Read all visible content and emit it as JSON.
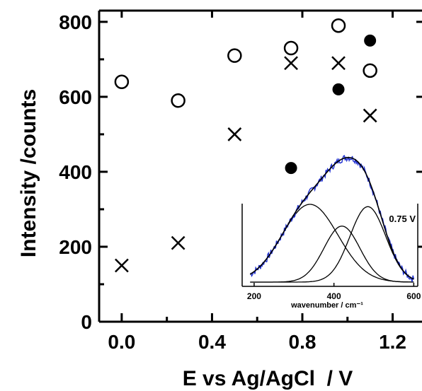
{
  "chart_data": [
    {
      "type": "scatter",
      "title": "",
      "xlabel": "E vs Ag/AgCl  / V",
      "ylabel": "Intensity /counts",
      "xlim": [
        -0.1,
        1.33
      ],
      "ylim": [
        0,
        830
      ],
      "x_ticks": [
        "0.0",
        "0.4",
        "0.8",
        "1.2"
      ],
      "x_tick_values": [
        0.0,
        0.4,
        0.8,
        1.2
      ],
      "y_ticks": [
        "0",
        "200",
        "400",
        "600",
        "800"
      ],
      "y_tick_values": [
        0,
        200,
        400,
        600,
        800
      ],
      "grid": false,
      "series": [
        {
          "marker": "open-circle",
          "points": [
            [
              0.0,
              640
            ],
            [
              0.25,
              590
            ],
            [
              0.5,
              710
            ],
            [
              0.75,
              730
            ],
            [
              0.96,
              790
            ],
            [
              1.1,
              670
            ]
          ]
        },
        {
          "marker": "cross",
          "points": [
            [
              0.0,
              150
            ],
            [
              0.25,
              210
            ],
            [
              0.5,
              500
            ],
            [
              0.75,
              690
            ],
            [
              0.96,
              690
            ],
            [
              1.1,
              550
            ]
          ]
        },
        {
          "marker": "filled-circle",
          "points": [
            [
              0.75,
              410
            ],
            [
              0.96,
              620
            ],
            [
              1.1,
              750
            ]
          ]
        }
      ]
    },
    {
      "type": "line",
      "role": "inset",
      "xlabel": "wavenumber / cm⁻¹",
      "x_ticks": [
        "200",
        "400",
        "600"
      ],
      "x_tick_values": [
        200,
        400,
        600
      ],
      "xlim": [
        170,
        610
      ],
      "annotation": "0.75 V",
      "colors": {
        "measured": "#1f2fd0",
        "fit": "#000000"
      },
      "peaks": [
        {
          "center": 340,
          "width": 70,
          "height": 1.0
        },
        {
          "center": 420,
          "width": 45,
          "height": 0.72
        },
        {
          "center": 485,
          "width": 45,
          "height": 0.97
        }
      ]
    }
  ]
}
